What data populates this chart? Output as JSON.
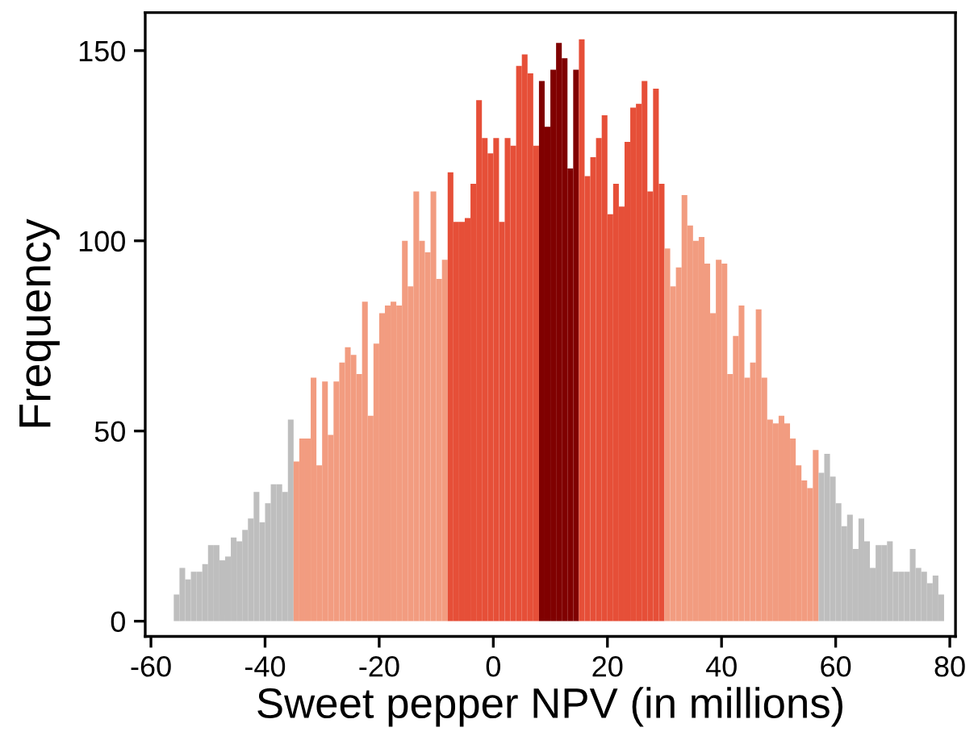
{
  "chart_data": {
    "type": "histogram",
    "xlabel": "Sweet pepper NPV (in millions)",
    "ylabel": "Frequency",
    "bins": [
      -56,
      -55,
      -54,
      -53,
      -52,
      -51,
      -50,
      -49,
      -48,
      -47,
      -46,
      -45,
      -44,
      -43,
      -42,
      -41,
      -40,
      -39,
      -38,
      -37,
      -36,
      -35,
      -34,
      -33,
      -32,
      -31,
      -30,
      -29,
      -28,
      -27,
      -26,
      -25,
      -24,
      -23,
      -22,
      -21,
      -20,
      -19,
      -18,
      -17,
      -16,
      -15,
      -14,
      -13,
      -12,
      -11,
      -10,
      -9,
      -8,
      -7,
      -6,
      -5,
      -4,
      -3,
      -2,
      -1,
      0,
      1,
      2,
      3,
      4,
      5,
      6,
      7,
      8,
      9,
      10,
      11,
      12,
      13,
      14,
      15,
      16,
      17,
      18,
      19,
      20,
      21,
      22,
      23,
      24,
      25,
      26,
      27,
      28,
      29,
      30,
      31,
      32,
      33,
      34,
      35,
      36,
      37,
      38,
      39,
      40,
      41,
      42,
      43,
      44,
      45,
      46,
      47,
      48,
      49,
      50,
      51,
      52,
      53,
      54,
      55,
      56,
      57,
      58,
      59,
      60,
      61,
      62,
      63,
      64,
      65,
      66,
      67,
      68,
      69,
      70,
      71,
      72,
      73,
      74,
      75,
      76,
      77,
      78,
      79
    ],
    "values": [
      7,
      14,
      11,
      13,
      13,
      15,
      20,
      20,
      16,
      17,
      22,
      21,
      24,
      27,
      34,
      26,
      31,
      36,
      36,
      34,
      53,
      42,
      48,
      48,
      64,
      41,
      63,
      49,
      63,
      68,
      72,
      70,
      65,
      84,
      54,
      73,
      81,
      83,
      84,
      83,
      100,
      88,
      113,
      100,
      97,
      113,
      90,
      95,
      118,
      105,
      105,
      106,
      115,
      137,
      127,
      123,
      127,
      105,
      127,
      125,
      146,
      149,
      144,
      125,
      142,
      130,
      145,
      152,
      148,
      119,
      145,
      153,
      117,
      122,
      127,
      133,
      107,
      115,
      109,
      126,
      135,
      136,
      142,
      113,
      140,
      115,
      98,
      88,
      93,
      112,
      104,
      100,
      101,
      94,
      81,
      95,
      94,
      65,
      75,
      83,
      64,
      68,
      82,
      64,
      53,
      52,
      54,
      52,
      48,
      41,
      37,
      35,
      45,
      39,
      44,
      38,
      31,
      25,
      28,
      19,
      27,
      21,
      14,
      20,
      20,
      21,
      13,
      13,
      13,
      19,
      14,
      13,
      10,
      12,
      7
    ],
    "colors": [
      "#bebebe",
      "#bebebe",
      "#bebebe",
      "#bebebe",
      "#bebebe",
      "#bebebe",
      "#bebebe",
      "#bebebe",
      "#bebebe",
      "#bebebe",
      "#bebebe",
      "#bebebe",
      "#bebebe",
      "#bebebe",
      "#bebebe",
      "#bebebe",
      "#bebebe",
      "#bebebe",
      "#bebebe",
      "#bebebe",
      "#bebebe",
      "#f29c80",
      "#f29c80",
      "#f29c80",
      "#f29c80",
      "#f29c80",
      "#f29c80",
      "#f29c80",
      "#f29c80",
      "#f29c80",
      "#f29c80",
      "#f29c80",
      "#f29c80",
      "#f29c80",
      "#f29c80",
      "#f29c80",
      "#f29c80",
      "#f29c80",
      "#f29c80",
      "#f29c80",
      "#f29c80",
      "#f29c80",
      "#f29c80",
      "#f29c80",
      "#f29c80",
      "#f29c80",
      "#f29c80",
      "#f29c80",
      "#e64f38",
      "#e64f38",
      "#e64f38",
      "#e64f38",
      "#e64f38",
      "#e64f38",
      "#e64f38",
      "#e64f38",
      "#e64f38",
      "#e64f38",
      "#e64f38",
      "#e64f38",
      "#e64f38",
      "#e64f38",
      "#e64f38",
      "#e64f38",
      "#800000",
      "#800000",
      "#800000",
      "#800000",
      "#800000",
      "#800000",
      "#800000",
      "#e64f38",
      "#e64f38",
      "#e64f38",
      "#e64f38",
      "#e64f38",
      "#e64f38",
      "#e64f38",
      "#e64f38",
      "#e64f38",
      "#e64f38",
      "#e64f38",
      "#e64f38",
      "#e64f38",
      "#e64f38",
      "#e64f38",
      "#f29c80",
      "#f29c80",
      "#f29c80",
      "#f29c80",
      "#f29c80",
      "#f29c80",
      "#f29c80",
      "#f29c80",
      "#f29c80",
      "#f29c80",
      "#f29c80",
      "#f29c80",
      "#f29c80",
      "#f29c80",
      "#f29c80",
      "#f29c80",
      "#f29c80",
      "#f29c80",
      "#f29c80",
      "#f29c80",
      "#f29c80",
      "#f29c80",
      "#f29c80",
      "#f29c80",
      "#f29c80",
      "#f29c80",
      "#f29c80",
      "#bebebe",
      "#bebebe",
      "#bebebe",
      "#bebebe",
      "#bebebe",
      "#bebebe",
      "#bebebe",
      "#bebebe",
      "#bebebe",
      "#bebebe",
      "#bebebe",
      "#bebebe",
      "#bebebe",
      "#bebebe",
      "#bebebe",
      "#bebebe",
      "#bebebe",
      "#bebebe",
      "#bebebe",
      "#bebebe",
      "#bebebe",
      "#bebebe"
    ],
    "xlim": [
      -61,
      81
    ],
    "ylim": [
      -4,
      160
    ],
    "xticks": [
      -60,
      -40,
      -20,
      0,
      20,
      40,
      60,
      80
    ],
    "yticks": [
      0,
      50,
      100,
      150
    ],
    "grid": false,
    "legend": false
  }
}
